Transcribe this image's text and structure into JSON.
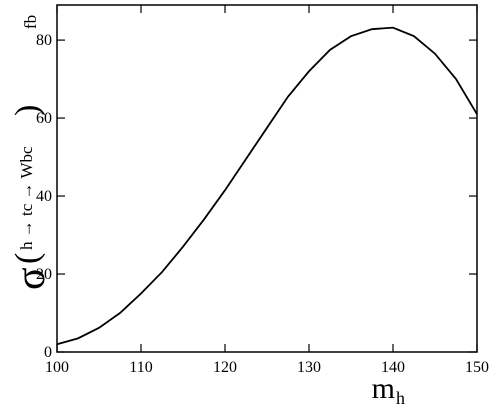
{
  "chart_data": {
    "type": "line",
    "x": [
      100,
      102.5,
      105,
      107.5,
      110,
      112.5,
      115,
      117.5,
      120,
      122.5,
      125,
      127.5,
      130,
      132.5,
      135,
      137.5,
      140,
      142.5,
      145,
      147.5,
      150
    ],
    "series": [
      {
        "color": "#000000",
        "values": [
          2,
          3.5,
          6.2,
          10,
          15,
          20.5,
          27,
          34,
          41.5,
          49.5,
          57.5,
          65.5,
          72,
          77.5,
          81,
          82.8,
          83.2,
          81,
          76.5,
          70,
          61
        ]
      }
    ],
    "xlim": [
      100,
      150
    ],
    "xticks": [
      100,
      110,
      120,
      130,
      140,
      150
    ],
    "ylim": [
      0,
      89
    ],
    "yticks": [
      0,
      20,
      40,
      60,
      80
    ],
    "xlabel": [
      "m",
      "h"
    ],
    "ylabel": [
      "σ",
      "(",
      "h → tc → Wbc",
      ")"
    ],
    "yunit": "fb"
  }
}
